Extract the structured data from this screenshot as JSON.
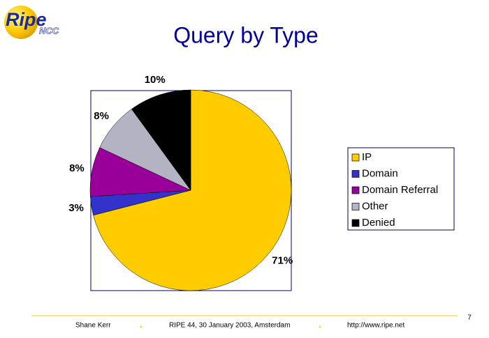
{
  "logo": {
    "text": "Ripe",
    "subtext": "NCC"
  },
  "chart_data": {
    "type": "pie",
    "title": "Query by Type",
    "categories": [
      "IP",
      "Domain",
      "Domain Referral",
      "Other",
      "Denied"
    ],
    "values": [
      71,
      3,
      8,
      8,
      10
    ],
    "value_labels": [
      "71%",
      "3%",
      "8%",
      "8%",
      "10%"
    ],
    "colors": [
      "#ffcc00",
      "#3333cc",
      "#990099",
      "#b3b3c3",
      "#000000"
    ],
    "legend": "right"
  },
  "footer": {
    "author": "Shane Kerr",
    "event": "RIPE 44, 30 January 2003, Amsterdam",
    "url": "http://www.ripe.net",
    "page": "7"
  }
}
